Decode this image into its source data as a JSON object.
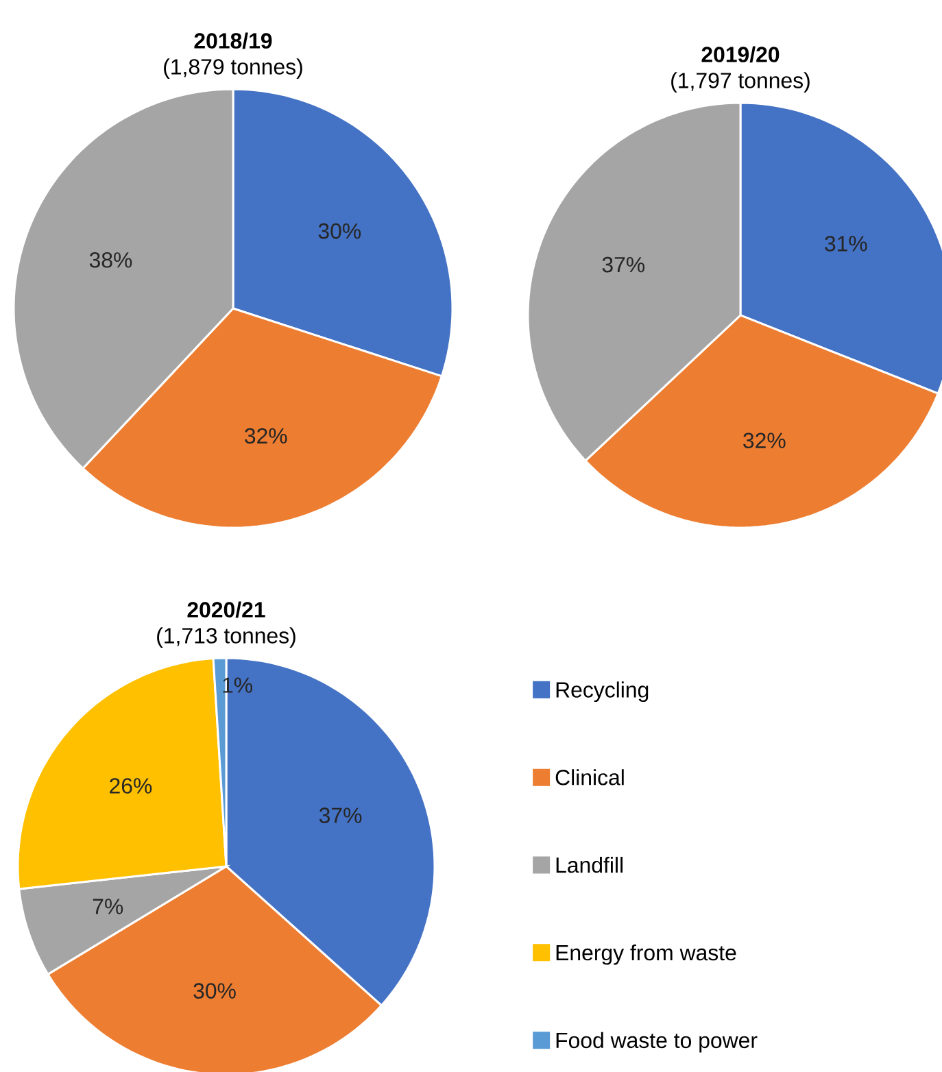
{
  "chart_data": [
    {
      "type": "pie",
      "title": "2018/19",
      "subtitle": "(1,879 tonnes)",
      "categories": [
        null,
        null,
        null
      ],
      "values": [
        30,
        32,
        38
      ],
      "value_labels": [
        "30%",
        "32%",
        "38%"
      ],
      "colors": [
        "#4472c4",
        "#ed7d31",
        "#a5a5a5"
      ]
    },
    {
      "type": "pie",
      "title": "2019/20",
      "subtitle": "(1,797 tonnes)",
      "categories": [
        null,
        null,
        null
      ],
      "values": [
        31,
        32,
        37
      ],
      "value_labels": [
        "31%",
        "32%",
        "37%"
      ],
      "colors": [
        "#4472c4",
        "#ed7d31",
        "#a5a5a5"
      ]
    },
    {
      "type": "pie",
      "title": "2020/21",
      "subtitle": "(1,713 tonnes)",
      "categories": [
        "Recycling",
        "Clinical",
        "Landfill",
        "Energy from waste",
        "Food waste to power"
      ],
      "values": [
        37,
        30,
        7,
        26,
        1
      ],
      "value_labels": [
        "37%",
        "30%",
        "7%",
        "26%",
        "1%"
      ],
      "colors": [
        "#4472c4",
        "#ed7d31",
        "#a5a5a5",
        "#ffc000",
        "#5b9bd5"
      ],
      "legend": "right"
    }
  ]
}
